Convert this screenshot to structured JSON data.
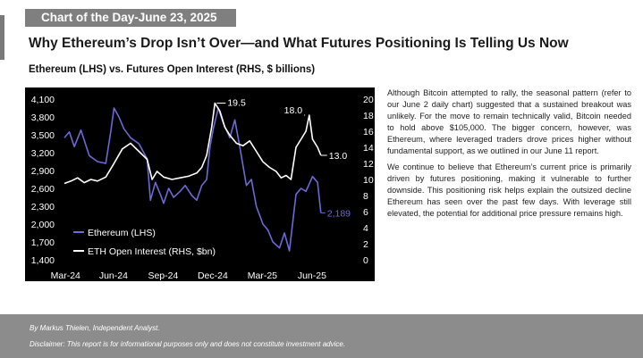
{
  "header": {
    "banner": "Chart of the Day-June 23, 2025"
  },
  "headline": "Why Ethereum’s Drop Isn’t Over—and What Futures Positioning Is Telling Us Now",
  "body": {
    "paragraph1": "Although Bitcoin attempted to rally, the seasonal pattern (refer to our June 2 daily chart) suggested that a sustained breakout was unlikely. For the move to remain technically valid, Bitcoin needed to hold above $105,000. The bigger concern, however, was Ethereum, where leveraged traders drove prices higher without fundamental support, as we outlined in our June 11 report.",
    "paragraph2": "We continue to believe that Ethereum’s current price is primarily driven by futures positioning, making it vulnerable to further downside. This positioning risk helps explain the outsized decline Ethereum has seen over the past few days. With leverage still elevated, the potential for additional price pressure remains high."
  },
  "footer": {
    "author": "By Markus Thielen, Independent Analyst.",
    "disclaimer": "Disclaimer: This report is for informational purposes only and does not constitute investment advice."
  },
  "colors": {
    "eth": "#6a6ad6",
    "oi": "#ffffff",
    "background": "#000000"
  },
  "chart_data": {
    "type": "line",
    "title": "Ethereum (LHS) vs. Futures Open Interest (RHS, $ billions)",
    "x_ticks": [
      "Mar-24",
      "Jun-24",
      "Sep-24",
      "Dec-24",
      "Mar-25",
      "Jun-25"
    ],
    "y_left_ticks": [
      "1,400",
      "1,700",
      "2,000",
      "2,300",
      "2,600",
      "2,900",
      "3,200",
      "3,500",
      "3,800",
      "4,100"
    ],
    "y_right_ticks": [
      "0",
      "2",
      "4",
      "6",
      "8",
      "10",
      "12",
      "14",
      "16",
      "18",
      "20"
    ],
    "y_left_range": [
      1400,
      4100
    ],
    "y_right_range": [
      0,
      20
    ],
    "x_range": [
      0,
      16
    ],
    "annotations": [
      {
        "text": "19.5",
        "series": "oi",
        "x": 9.1,
        "y": 19.5
      },
      {
        "text": "18.0",
        "series": "oi",
        "x": 14.6,
        "y": 18.0
      },
      {
        "text": "13.0",
        "series": "oi",
        "x": 15.5,
        "y": 13.0
      },
      {
        "text": "2,189",
        "series": "eth",
        "x": 15.5,
        "y": 2189
      }
    ],
    "series": [
      {
        "name": "Ethereum (LHS)",
        "axis": "left",
        "x": [
          0,
          0.3,
          0.6,
          1.0,
          1.5,
          2.0,
          2.5,
          2.8,
          3.0,
          3.3,
          3.6,
          4.0,
          4.5,
          5.0,
          5.2,
          5.5,
          5.8,
          6.0,
          6.3,
          6.6,
          7.0,
          7.3,
          7.7,
          8.0,
          8.3,
          8.6,
          8.8,
          9.0,
          9.3,
          9.6,
          10.0,
          10.3,
          10.6,
          11.0,
          11.3,
          11.6,
          12.0,
          12.3,
          12.6,
          13.0,
          13.3,
          13.6,
          14.0,
          14.3,
          14.6,
          15.0,
          15.3,
          15.5
        ],
        "values": [
          3450,
          3550,
          3300,
          3580,
          3150,
          3050,
          3020,
          3550,
          3950,
          3800,
          3600,
          3450,
          3350,
          3100,
          2400,
          2700,
          2500,
          2350,
          2600,
          2450,
          2550,
          2650,
          2480,
          2400,
          2650,
          2750,
          3300,
          3600,
          3950,
          3700,
          3450,
          3750,
          3300,
          2650,
          2750,
          2300,
          2000,
          1900,
          1700,
          1600,
          1850,
          1550,
          2500,
          2600,
          2550,
          2800,
          2700,
          2189
        ]
      },
      {
        "name": "ETH Open Interest (RHS, $bn)",
        "axis": "right",
        "x": [
          0,
          0.4,
          0.8,
          1.2,
          1.6,
          2.0,
          2.5,
          3.0,
          3.5,
          4.0,
          4.5,
          5.0,
          5.3,
          5.6,
          6.0,
          6.5,
          7.0,
          7.5,
          8.0,
          8.3,
          8.6,
          8.9,
          9.1,
          9.4,
          9.7,
          10.0,
          10.4,
          10.8,
          11.2,
          11.6,
          12.0,
          12.4,
          12.8,
          13.1,
          13.4,
          13.7,
          14.0,
          14.3,
          14.6,
          14.8,
          15.0,
          15.3,
          15.5
        ],
        "values": [
          9.5,
          9.8,
          10.2,
          9.6,
          10.0,
          9.8,
          10.3,
          12.0,
          13.8,
          14.5,
          13.5,
          12.5,
          10.0,
          11.0,
          10.3,
          10.0,
          10.2,
          10.4,
          10.8,
          11.5,
          13.0,
          16.5,
          19.5,
          18.5,
          16.5,
          15.5,
          14.5,
          14.2,
          14.8,
          13.5,
          12.2,
          11.5,
          11.0,
          10.2,
          10.5,
          10.0,
          14.0,
          15.0,
          16.0,
          18.0,
          15.0,
          14.0,
          13.0
        ]
      }
    ]
  }
}
